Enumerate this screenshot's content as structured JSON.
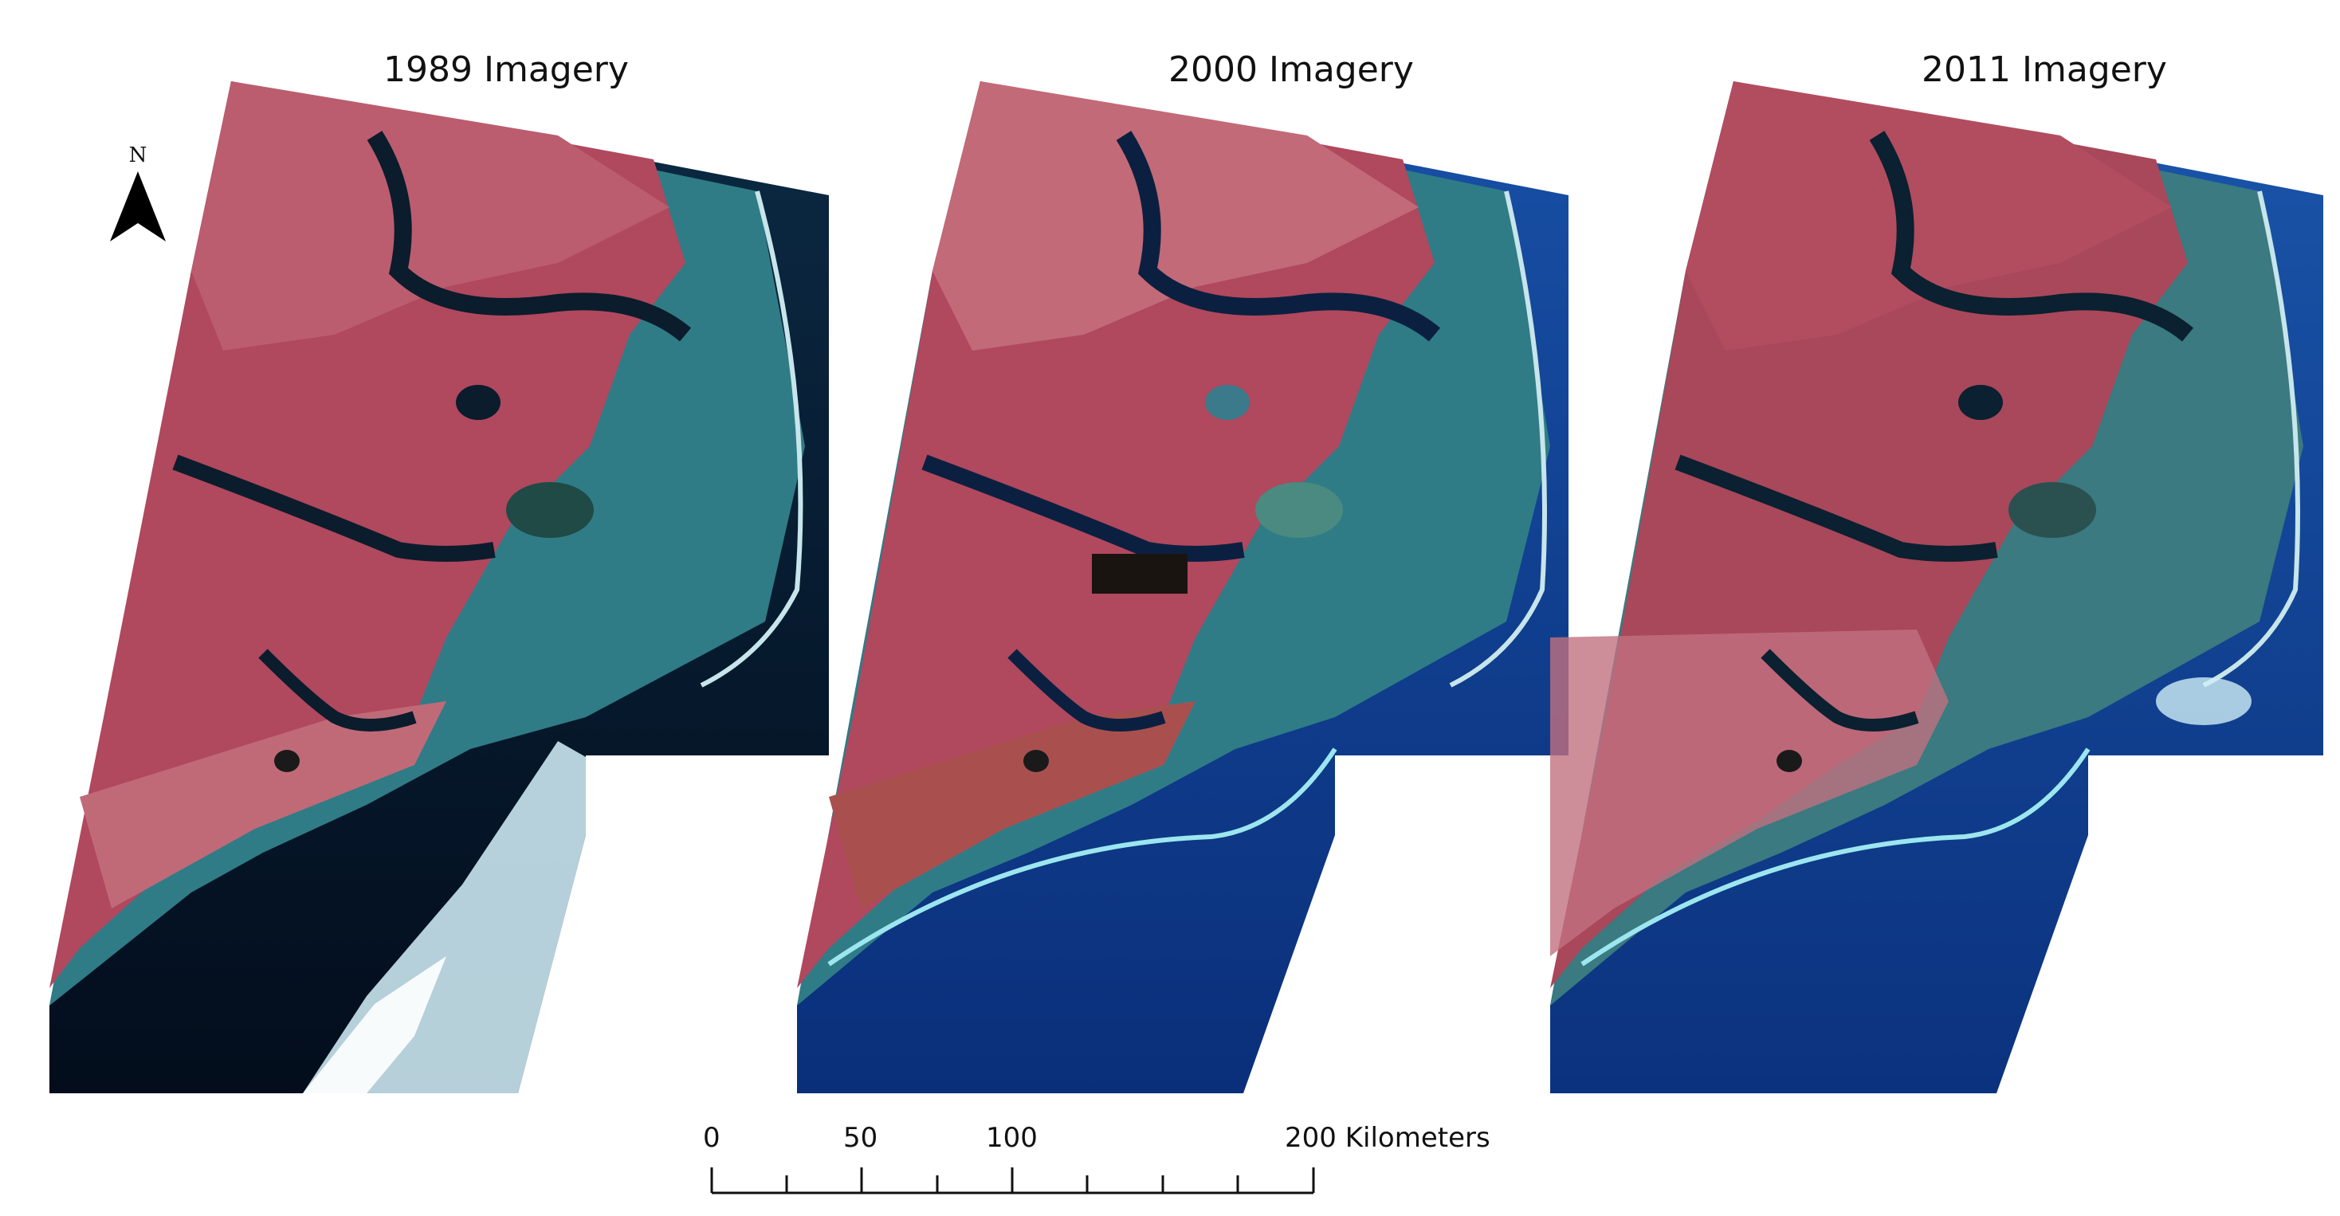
{
  "panels": [
    {
      "title": "1989 Imagery"
    },
    {
      "title": "2000 Imagery"
    },
    {
      "title": "2011 Imagery"
    }
  ],
  "north_arrow": {
    "label": "N"
  },
  "scale_bar": {
    "labels": [
      "0",
      "50",
      "100",
      "200 Kilometers"
    ],
    "units": "Kilometers"
  },
  "colors": {
    "land": "#b0485e",
    "land_light": "#c9707d",
    "water_coastal": "#2f7c86",
    "ocean_1989": "#06182e",
    "ocean_2000": "#0e3d8f",
    "ocean_2011": "#0f3f92",
    "river": "#0b1c2c",
    "cloud": "#d6f2fb"
  }
}
